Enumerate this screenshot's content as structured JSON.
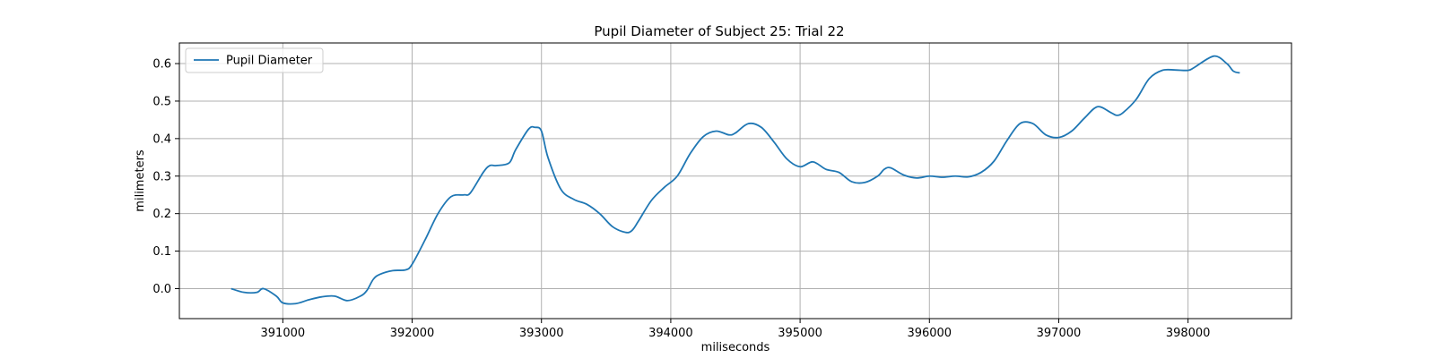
{
  "chart_data": {
    "type": "line",
    "title": "Pupil Diameter of Subject 25: Trial 22",
    "xlabel": "miliseconds",
    "ylabel": "milimeters",
    "xlim": [
      390200,
      398800
    ],
    "ylim": [
      -0.08,
      0.655
    ],
    "xticks": [
      391000,
      392000,
      393000,
      394000,
      395000,
      396000,
      397000,
      398000
    ],
    "yticks": [
      0.0,
      0.1,
      0.2,
      0.3,
      0.4,
      0.5,
      0.6
    ],
    "ytick_labels": [
      "0.0",
      "0.1",
      "0.2",
      "0.3",
      "0.4",
      "0.5",
      "0.6"
    ],
    "grid": true,
    "legend_position": "upper-left",
    "colors": {
      "line": "#1f77b4",
      "grid": "#b0b0b0"
    },
    "series": [
      {
        "name": "Pupil Diameter",
        "x": [
          390600,
          390700,
          390800,
          390850,
          390950,
          391000,
          391100,
          391200,
          391300,
          391400,
          391500,
          391600,
          391650,
          391700,
          391750,
          391850,
          391950,
          392000,
          392100,
          392200,
          392300,
          392400,
          392450,
          392550,
          392600,
          392650,
          392750,
          392800,
          392900,
          392950,
          393000,
          393050,
          393150,
          393250,
          393350,
          393450,
          393550,
          393650,
          393700,
          393750,
          393850,
          393950,
          394050,
          394150,
          394250,
          394350,
          394450,
          394500,
          394600,
          394700,
          394800,
          394900,
          395000,
          395100,
          395200,
          395300,
          395400,
          395500,
          395600,
          395650,
          395700,
          395800,
          395900,
          396000,
          396100,
          396200,
          396300,
          396400,
          396500,
          396600,
          396700,
          396800,
          396900,
          397000,
          397100,
          397200,
          397300,
          397400,
          397450,
          397500,
          397600,
          397700,
          397800,
          397900,
          398000,
          398050,
          398200,
          398300,
          398350,
          398400
        ],
        "y": [
          0.0,
          -0.01,
          -0.01,
          0.0,
          -0.02,
          -0.038,
          -0.04,
          -0.03,
          -0.022,
          -0.02,
          -0.032,
          -0.02,
          -0.005,
          0.025,
          0.038,
          0.048,
          0.05,
          0.065,
          0.13,
          0.2,
          0.245,
          0.25,
          0.255,
          0.31,
          0.328,
          0.328,
          0.335,
          0.37,
          0.425,
          0.43,
          0.42,
          0.35,
          0.265,
          0.238,
          0.225,
          0.2,
          0.165,
          0.15,
          0.155,
          0.18,
          0.235,
          0.27,
          0.3,
          0.36,
          0.405,
          0.42,
          0.41,
          0.415,
          0.44,
          0.43,
          0.39,
          0.345,
          0.325,
          0.338,
          0.318,
          0.31,
          0.285,
          0.283,
          0.3,
          0.318,
          0.322,
          0.303,
          0.295,
          0.3,
          0.297,
          0.3,
          0.298,
          0.31,
          0.34,
          0.395,
          0.44,
          0.44,
          0.41,
          0.403,
          0.42,
          0.455,
          0.485,
          0.47,
          0.462,
          0.47,
          0.505,
          0.56,
          0.582,
          0.583,
          0.582,
          0.59,
          0.62,
          0.6,
          0.58,
          0.575
        ]
      }
    ]
  }
}
